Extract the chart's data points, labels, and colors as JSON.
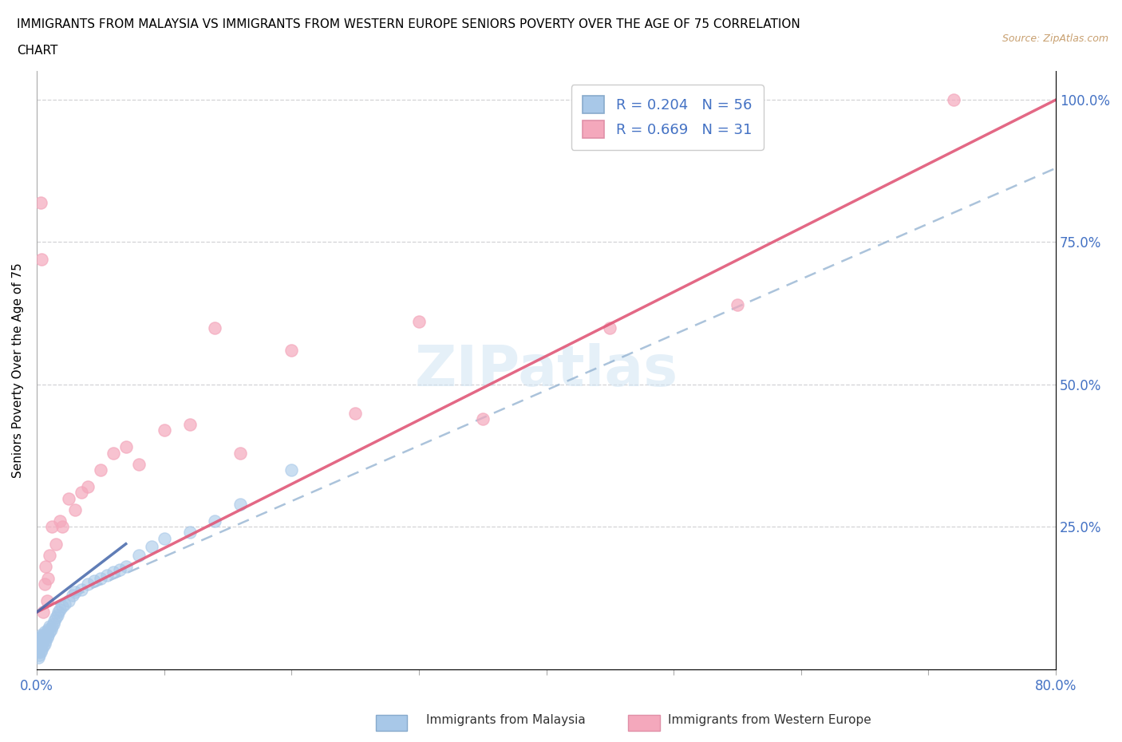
{
  "title_line1": "IMMIGRANTS FROM MALAYSIA VS IMMIGRANTS FROM WESTERN EUROPE SENIORS POVERTY OVER THE AGE OF 75 CORRELATION",
  "title_line2": "CHART",
  "source": "Source: ZipAtlas.com",
  "ylabel": "Seniors Poverty Over the Age of 75",
  "xmin": 0.0,
  "xmax": 0.8,
  "ymin": 0.0,
  "ymax": 1.05,
  "malaysia_R": 0.204,
  "malaysia_N": 56,
  "western_europe_R": 0.669,
  "western_europe_N": 31,
  "malaysia_color": "#a8c8e8",
  "western_europe_color": "#f4a8bc",
  "trendline_malaysia_dashed_color": "#88aacc",
  "trendline_malaysia_solid_color": "#4466aa",
  "trendline_western_europe_color": "#e05878",
  "watermark_color": "#d0e4f4",
  "malaysia_x": [
    0.001,
    0.001,
    0.001,
    0.002,
    0.002,
    0.002,
    0.002,
    0.003,
    0.003,
    0.003,
    0.003,
    0.004,
    0.004,
    0.004,
    0.005,
    0.005,
    0.005,
    0.006,
    0.006,
    0.006,
    0.007,
    0.007,
    0.008,
    0.008,
    0.009,
    0.009,
    0.01,
    0.01,
    0.011,
    0.012,
    0.013,
    0.014,
    0.015,
    0.016,
    0.017,
    0.018,
    0.02,
    0.022,
    0.025,
    0.028,
    0.03,
    0.035,
    0.04,
    0.045,
    0.05,
    0.055,
    0.06,
    0.065,
    0.07,
    0.08,
    0.09,
    0.1,
    0.12,
    0.14,
    0.16,
    0.2
  ],
  "malaysia_y": [
    0.02,
    0.03,
    0.04,
    0.025,
    0.035,
    0.045,
    0.055,
    0.03,
    0.04,
    0.05,
    0.06,
    0.035,
    0.045,
    0.055,
    0.04,
    0.05,
    0.06,
    0.045,
    0.055,
    0.065,
    0.05,
    0.06,
    0.055,
    0.065,
    0.06,
    0.07,
    0.065,
    0.075,
    0.07,
    0.075,
    0.08,
    0.085,
    0.09,
    0.095,
    0.1,
    0.105,
    0.11,
    0.115,
    0.12,
    0.13,
    0.135,
    0.14,
    0.15,
    0.155,
    0.16,
    0.165,
    0.17,
    0.175,
    0.18,
    0.2,
    0.215,
    0.23,
    0.24,
    0.26,
    0.29,
    0.35
  ],
  "western_europe_x": [
    0.003,
    0.004,
    0.005,
    0.006,
    0.007,
    0.008,
    0.009,
    0.01,
    0.012,
    0.015,
    0.018,
    0.02,
    0.025,
    0.03,
    0.035,
    0.04,
    0.05,
    0.06,
    0.07,
    0.08,
    0.1,
    0.12,
    0.14,
    0.16,
    0.2,
    0.25,
    0.3,
    0.35,
    0.45,
    0.55,
    0.72
  ],
  "western_europe_y": [
    0.82,
    0.72,
    0.1,
    0.15,
    0.18,
    0.12,
    0.16,
    0.2,
    0.25,
    0.22,
    0.26,
    0.25,
    0.3,
    0.28,
    0.31,
    0.32,
    0.35,
    0.38,
    0.39,
    0.36,
    0.42,
    0.43,
    0.6,
    0.38,
    0.56,
    0.45,
    0.61,
    0.44,
    0.6,
    0.64,
    1.0
  ],
  "we_trendline_x0": 0.0,
  "we_trendline_y0": 0.1,
  "we_trendline_x1": 0.8,
  "we_trendline_y1": 1.0,
  "mal_trendline_x0": 0.0,
  "mal_trendline_y0": 0.1,
  "mal_trendline_x1": 0.8,
  "mal_trendline_y1": 0.88
}
